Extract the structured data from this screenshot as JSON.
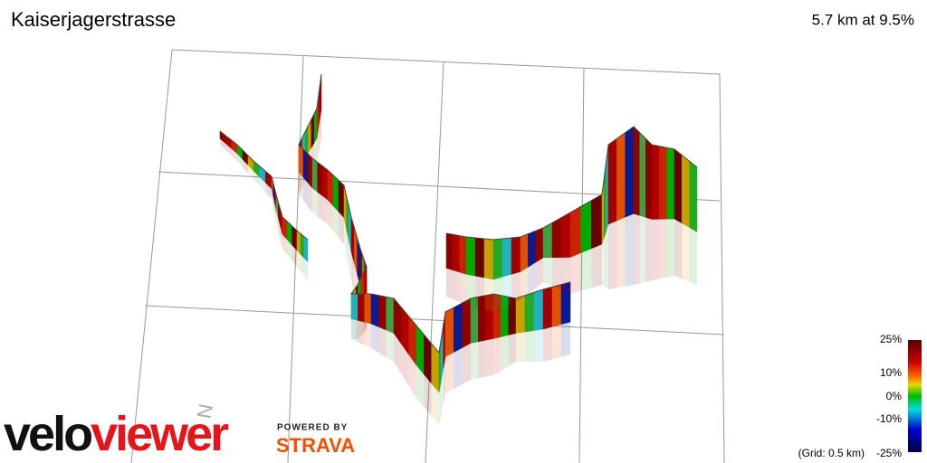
{
  "title": "Kaiserjagerstrasse",
  "summary": "5.7 km at 9.5%",
  "legend": {
    "labels": [
      "25%",
      "10%",
      "0%",
      "-10%",
      "-25%"
    ],
    "grid_note": "(Grid: 0.5 km)"
  },
  "compass": "N",
  "logo": {
    "part1": "velo",
    "part2": "viewer"
  },
  "powered_by": "POWERED BY",
  "strava": "STRAVA"
}
